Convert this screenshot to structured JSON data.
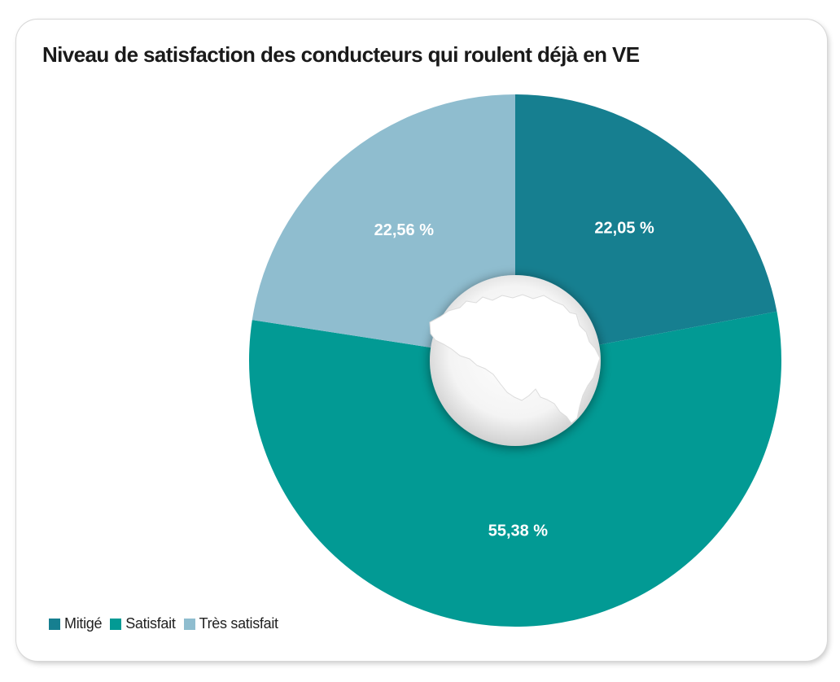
{
  "chart_data": {
    "type": "pie",
    "title": "Niveau de satisfaction des conducteurs qui roulent déjà en VE",
    "categories": [
      "Mitigé",
      "Satisfait",
      "Très satisfait"
    ],
    "values": [
      22.05,
      55.38,
      22.56
    ],
    "labels": [
      "22,05 %",
      "55,38 %",
      "22,56 %"
    ],
    "colors": [
      "#167f90",
      "#029a94",
      "#8fbdcf"
    ],
    "legend_position": "bottom-left",
    "center_icon": "belgium-map-icon"
  }
}
